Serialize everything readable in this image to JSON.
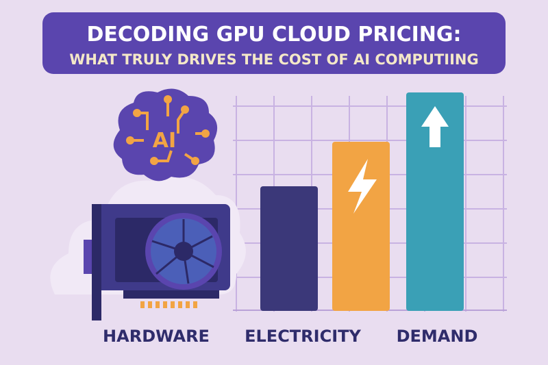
{
  "header": {
    "title": "DECODING GPU CLOUD PRICING:",
    "subtitle": "WHAT TRULY DRIVES THE COST OF AI COMPUTIING"
  },
  "brain_label": "AI",
  "labels": [
    "HARDWARE",
    "ELECTRICITY",
    "DEMAND"
  ]
}
